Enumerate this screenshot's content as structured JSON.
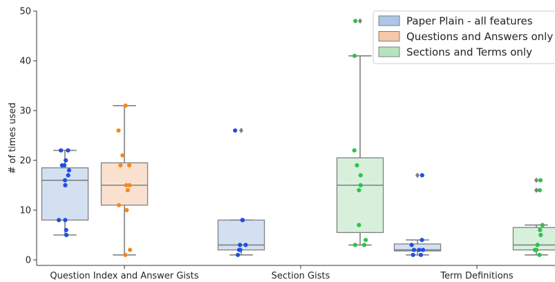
{
  "chart_data": {
    "type": "box",
    "title": "",
    "xlabel": "",
    "ylabel": "# of times used",
    "ylim": [
      0,
      50
    ],
    "yticks": [
      0,
      10,
      20,
      30,
      40,
      50
    ],
    "grid": false,
    "legend_position": "top-right",
    "categories": [
      "Question Index and Answer Gists",
      "Section Gists",
      "Term Definitions"
    ],
    "series": [
      {
        "name": "Paper Plain - all features",
        "color": "#aec7e8",
        "point_color": "#1f4fe0",
        "boxes": [
          {
            "category": "Question Index and Answer Gists",
            "whisker_low": 5,
            "q1": 8,
            "median": 16,
            "q3": 18.5,
            "whisker_high": 22,
            "fliers": [],
            "points": [
              22,
              22,
              20,
              19,
              19,
              18,
              17,
              16,
              15,
              8,
              8,
              6,
              5
            ]
          },
          {
            "category": "Section Gists",
            "whisker_low": 1,
            "q1": 2,
            "median": 3,
            "q3": 8,
            "whisker_high": 8,
            "fliers": [
              26
            ],
            "points": [
              26,
              8,
              8,
              3,
              3,
              2,
              2,
              1
            ]
          },
          {
            "category": "Term Definitions",
            "whisker_low": 1,
            "q1": 1.8,
            "median": 2,
            "q3": 3.2,
            "whisker_high": 4,
            "fliers": [
              17
            ],
            "points": [
              17,
              4,
              3,
              2,
              2,
              2,
              1,
              1
            ]
          }
        ]
      },
      {
        "name": "Questions and Answers only",
        "color": "#f5c8a8",
        "point_color": "#f5871f",
        "boxes": [
          {
            "category": "Question Index and Answer Gists",
            "whisker_low": 1,
            "q1": 11,
            "median": 15,
            "q3": 19.5,
            "whisker_high": 31,
            "fliers": [],
            "points": [
              31,
              26,
              21,
              19,
              19,
              15,
              15,
              14,
              11,
              10,
              2,
              1
            ]
          }
        ]
      },
      {
        "name": "Sections and Terms only",
        "color": "#b6e3c0",
        "point_color": "#2ec24a",
        "boxes": [
          {
            "category": "Section Gists",
            "whisker_low": 3,
            "q1": 5.5,
            "median": 15,
            "q3": 20.5,
            "whisker_high": 41,
            "fliers": [
              48
            ],
            "points": [
              48,
              41,
              22,
              19,
              17,
              15,
              14,
              7,
              4,
              3,
              3
            ]
          },
          {
            "category": "Term Definitions",
            "whisker_low": 1,
            "q1": 2,
            "median": 3,
            "q3": 6.5,
            "whisker_high": 7,
            "fliers": [
              16,
              14
            ],
            "points": [
              16,
              14,
              7,
              6,
              5,
              3,
              2,
              2,
              2,
              1
            ]
          }
        ]
      }
    ]
  }
}
